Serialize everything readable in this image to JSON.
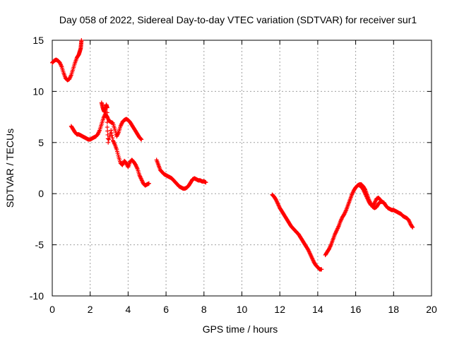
{
  "chart_data": {
    "type": "scatter",
    "title": "Day 058 of 2022, Sidereal Day-to-day VTEC variation (SDTVAR) for receiver sur1",
    "xlabel": "GPS time / hours",
    "ylabel": "SDTVAR / TECUs",
    "xlim": [
      0,
      20
    ],
    "ylim": [
      -10,
      15
    ],
    "xticks": [
      "0",
      "2",
      "4",
      "6",
      "8",
      "10",
      "12",
      "14",
      "16",
      "18",
      "20"
    ],
    "yticks": [
      "-10",
      "-5",
      "0",
      "5",
      "10",
      "15"
    ],
    "grid": true,
    "marker": "+",
    "color": "#ff0000",
    "series": [
      {
        "name": "seg1",
        "points": [
          [
            0.0,
            12.8
          ],
          [
            0.1,
            13.0
          ],
          [
            0.2,
            13.1
          ],
          [
            0.3,
            13.0
          ],
          [
            0.4,
            12.8
          ],
          [
            0.5,
            12.4
          ],
          [
            0.6,
            11.8
          ],
          [
            0.7,
            11.3
          ],
          [
            0.8,
            11.1
          ],
          [
            0.9,
            11.2
          ],
          [
            1.0,
            11.6
          ],
          [
            1.1,
            12.2
          ],
          [
            1.2,
            12.8
          ],
          [
            1.3,
            13.3
          ],
          [
            1.4,
            13.6
          ],
          [
            1.45,
            13.9
          ],
          [
            1.5,
            14.2
          ],
          [
            1.52,
            14.6
          ],
          [
            1.54,
            15.0
          ]
        ]
      },
      {
        "name": "seg2",
        "points": [
          [
            1.0,
            6.6
          ],
          [
            1.1,
            6.3
          ],
          [
            1.2,
            6.0
          ],
          [
            1.3,
            5.8
          ],
          [
            1.4,
            5.8
          ],
          [
            1.5,
            5.7
          ],
          [
            1.6,
            5.6
          ],
          [
            1.7,
            5.5
          ],
          [
            1.8,
            5.4
          ],
          [
            1.9,
            5.3
          ],
          [
            2.0,
            5.3
          ],
          [
            2.1,
            5.4
          ],
          [
            2.2,
            5.5
          ],
          [
            2.3,
            5.6
          ],
          [
            2.4,
            5.8
          ],
          [
            2.5,
            6.2
          ],
          [
            2.6,
            6.8
          ],
          [
            2.7,
            7.4
          ],
          [
            2.8,
            7.8
          ],
          [
            2.9,
            7.5
          ],
          [
            3.0,
            7.1
          ],
          [
            3.1,
            7.0
          ],
          [
            3.2,
            6.9
          ],
          [
            3.3,
            6.3
          ],
          [
            3.4,
            5.6
          ],
          [
            3.5,
            6.0
          ],
          [
            3.6,
            6.6
          ],
          [
            3.7,
            7.0
          ],
          [
            3.8,
            7.2
          ],
          [
            3.9,
            7.3
          ],
          [
            4.0,
            7.2
          ],
          [
            4.1,
            7.0
          ],
          [
            4.2,
            6.7
          ],
          [
            4.3,
            6.4
          ],
          [
            4.4,
            6.1
          ],
          [
            4.5,
            5.8
          ],
          [
            4.6,
            5.5
          ],
          [
            4.7,
            5.3
          ]
        ]
      },
      {
        "name": "seg3",
        "points": [
          [
            2.6,
            8.9
          ],
          [
            2.65,
            8.5
          ],
          [
            2.7,
            8.2
          ],
          [
            2.75,
            8.0
          ],
          [
            2.8,
            8.3
          ],
          [
            2.85,
            8.7
          ],
          [
            2.9,
            8.4
          ],
          [
            2.9,
            6.5
          ],
          [
            2.95,
            5.0
          ],
          [
            3.1,
            6.2
          ],
          [
            3.2,
            5.2
          ],
          [
            3.3,
            4.8
          ],
          [
            3.4,
            4.3
          ],
          [
            3.5,
            3.6
          ],
          [
            3.6,
            3.0
          ],
          [
            3.7,
            2.8
          ],
          [
            3.8,
            3.2
          ],
          [
            3.9,
            3.0
          ],
          [
            4.0,
            2.6
          ],
          [
            4.1,
            3.1
          ],
          [
            4.2,
            3.3
          ],
          [
            4.3,
            3.1
          ],
          [
            4.4,
            2.8
          ],
          [
            4.5,
            2.4
          ],
          [
            4.6,
            1.8
          ],
          [
            4.7,
            1.4
          ],
          [
            4.8,
            1.0
          ],
          [
            4.9,
            0.8
          ],
          [
            5.0,
            0.9
          ],
          [
            5.1,
            1.0
          ]
        ]
      },
      {
        "name": "seg4",
        "points": [
          [
            5.5,
            3.3
          ],
          [
            5.6,
            2.8
          ],
          [
            5.7,
            2.3
          ],
          [
            5.8,
            2.1
          ],
          [
            5.9,
            1.9
          ],
          [
            6.0,
            1.8
          ],
          [
            6.1,
            1.7
          ],
          [
            6.2,
            1.6
          ],
          [
            6.3,
            1.5
          ],
          [
            6.4,
            1.3
          ],
          [
            6.5,
            1.1
          ],
          [
            6.6,
            0.9
          ],
          [
            6.7,
            0.7
          ],
          [
            6.8,
            0.6
          ],
          [
            6.9,
            0.5
          ],
          [
            7.0,
            0.5
          ],
          [
            7.1,
            0.6
          ],
          [
            7.2,
            0.8
          ],
          [
            7.3,
            1.1
          ],
          [
            7.4,
            1.4
          ],
          [
            7.5,
            1.5
          ],
          [
            7.6,
            1.4
          ],
          [
            7.7,
            1.3
          ],
          [
            7.8,
            1.3
          ],
          [
            7.9,
            1.2
          ],
          [
            8.0,
            1.2
          ],
          [
            8.1,
            1.1
          ]
        ]
      },
      {
        "name": "seg5",
        "points": [
          [
            11.6,
            -0.1
          ],
          [
            11.7,
            -0.3
          ],
          [
            11.8,
            -0.6
          ],
          [
            11.9,
            -1.0
          ],
          [
            12.0,
            -1.4
          ],
          [
            12.1,
            -1.7
          ],
          [
            12.2,
            -2.0
          ],
          [
            12.3,
            -2.3
          ],
          [
            12.4,
            -2.6
          ],
          [
            12.5,
            -2.9
          ],
          [
            12.6,
            -3.2
          ],
          [
            12.7,
            -3.4
          ],
          [
            12.8,
            -3.6
          ],
          [
            12.9,
            -3.8
          ],
          [
            13.0,
            -4.0
          ],
          [
            13.1,
            -4.3
          ],
          [
            13.2,
            -4.6
          ],
          [
            13.3,
            -4.9
          ],
          [
            13.4,
            -5.2
          ],
          [
            13.5,
            -5.5
          ],
          [
            13.6,
            -5.9
          ],
          [
            13.7,
            -6.3
          ],
          [
            13.8,
            -6.7
          ],
          [
            13.9,
            -7.0
          ],
          [
            14.0,
            -7.2
          ],
          [
            14.1,
            -7.4
          ],
          [
            14.2,
            -7.4
          ]
        ]
      },
      {
        "name": "seg6",
        "points": [
          [
            14.4,
            -6.0
          ],
          [
            14.5,
            -5.7
          ],
          [
            14.6,
            -5.4
          ],
          [
            14.7,
            -5.0
          ],
          [
            14.8,
            -4.5
          ],
          [
            14.9,
            -4.0
          ],
          [
            15.0,
            -3.6
          ],
          [
            15.1,
            -3.2
          ],
          [
            15.2,
            -2.7
          ],
          [
            15.3,
            -2.3
          ],
          [
            15.4,
            -2.0
          ],
          [
            15.5,
            -1.6
          ],
          [
            15.6,
            -1.1
          ],
          [
            15.7,
            -0.6
          ],
          [
            15.8,
            -0.1
          ],
          [
            15.9,
            0.3
          ],
          [
            16.0,
            0.6
          ],
          [
            16.1,
            0.8
          ],
          [
            16.2,
            0.9
          ],
          [
            16.3,
            0.9
          ],
          [
            16.4,
            0.7
          ],
          [
            16.5,
            0.4
          ],
          [
            16.6,
            -0.1
          ],
          [
            16.7,
            -0.6
          ],
          [
            16.8,
            -1.0
          ],
          [
            16.9,
            -1.3
          ],
          [
            17.0,
            -1.4
          ],
          [
            17.1,
            -1.3
          ],
          [
            17.2,
            -1.0
          ],
          [
            17.3,
            -0.8
          ],
          [
            17.4,
            -0.8
          ],
          [
            17.5,
            -0.9
          ],
          [
            17.6,
            -1.2
          ],
          [
            17.7,
            -1.4
          ],
          [
            17.8,
            -1.5
          ],
          [
            17.9,
            -1.6
          ],
          [
            18.0,
            -1.6
          ],
          [
            18.1,
            -1.7
          ],
          [
            18.2,
            -1.8
          ],
          [
            18.3,
            -1.9
          ],
          [
            18.4,
            -2.0
          ],
          [
            18.5,
            -2.2
          ],
          [
            18.6,
            -2.3
          ],
          [
            18.7,
            -2.4
          ],
          [
            18.8,
            -2.6
          ],
          [
            18.9,
            -3.0
          ],
          [
            19.0,
            -3.3
          ]
        ]
      },
      {
        "name": "seg7",
        "points": [
          [
            16.2,
            0.8
          ],
          [
            16.3,
            0.7
          ],
          [
            16.4,
            0.4
          ],
          [
            16.5,
            0.0
          ],
          [
            16.6,
            -0.4
          ],
          [
            16.7,
            -0.8
          ],
          [
            16.8,
            -1.1
          ],
          [
            16.9,
            -1.2
          ],
          [
            17.0,
            -0.9
          ],
          [
            17.1,
            -0.5
          ],
          [
            17.2,
            -0.4
          ],
          [
            17.3,
            -0.6
          ]
        ]
      }
    ]
  }
}
